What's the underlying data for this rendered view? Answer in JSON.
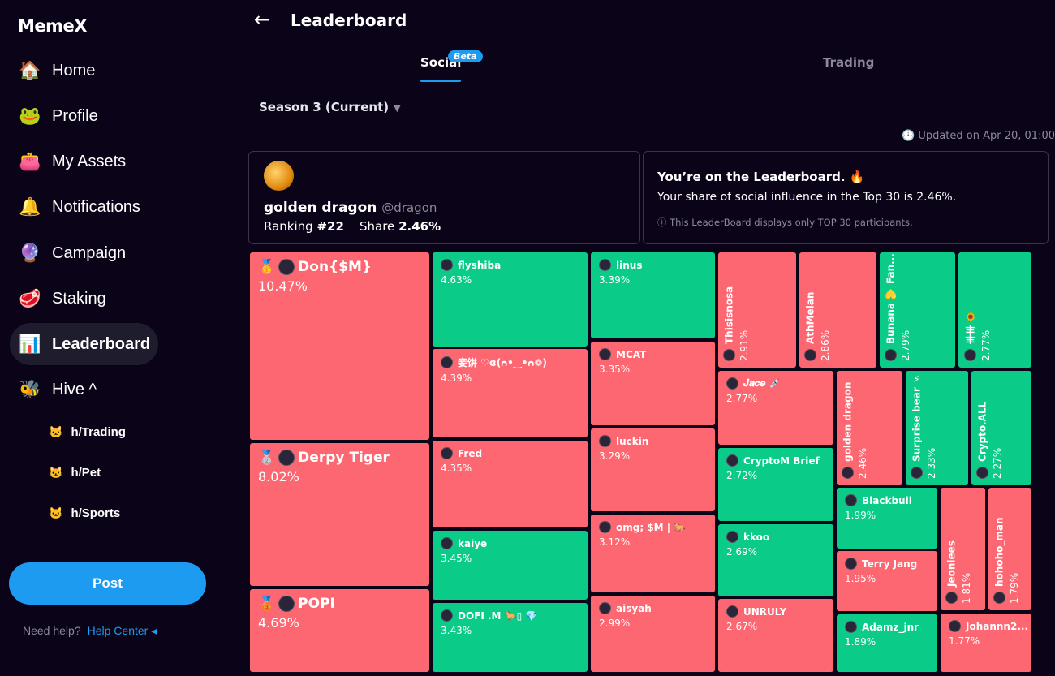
{
  "app": {
    "logo": "MemeX"
  },
  "sidebar": {
    "items": [
      {
        "label": "Home",
        "icon": "🏠"
      },
      {
        "label": "Profile",
        "icon": "🐸"
      },
      {
        "label": "My Assets",
        "icon": "👛"
      },
      {
        "label": "Notifications",
        "icon": "🔔"
      },
      {
        "label": "Campaign",
        "icon": "🔮"
      },
      {
        "label": "Staking",
        "icon": "🥩"
      },
      {
        "label": "Leaderboard",
        "icon": "📊"
      },
      {
        "label": "Hive ^",
        "icon": "🐝"
      }
    ],
    "hive": [
      {
        "label": "h/Trading",
        "icon": "🐱"
      },
      {
        "label": "h/Pet",
        "icon": "🐱"
      },
      {
        "label": "h/Sports",
        "icon": "🐱"
      }
    ],
    "post": "Post",
    "help_text": "Need help?",
    "help_link": "Help Center ◂"
  },
  "header": {
    "back": "←",
    "title": "Leaderboard"
  },
  "tabs": {
    "social": "Social",
    "beta": "Beta",
    "trading": "Trading"
  },
  "season": {
    "label": "Season 3 (Current)",
    "caret": "▼"
  },
  "updated": "🕓 Updated on Apr 20, 01:00",
  "user_card": {
    "name": "golden dragon",
    "handle": "@dragon",
    "ranking_label": "Ranking",
    "ranking": "#22",
    "share_label": "Share",
    "share": "2.46%"
  },
  "info_card": {
    "title": "You’re on the Leaderboard. 🔥",
    "text": "Your share of social influence in the Top 30 is 2.46%.",
    "note": "ⓘ This LeaderBoard displays only TOP 30 participants."
  },
  "colors": {
    "up": "#0acc88",
    "down": "#fd6771",
    "accent": "#1d9bf0"
  },
  "tiles": [
    {
      "name": "Don{$M}",
      "share": "10.47%",
      "trend": "down",
      "badge": "🥇"
    },
    {
      "name": "Derpy Tiger",
      "share": "8.02%",
      "trend": "down",
      "badge": "🥈"
    },
    {
      "name": "POPI",
      "share": "4.69%",
      "trend": "down",
      "badge": "🥉"
    },
    {
      "name": "flyshiba",
      "share": "4.63%",
      "trend": "up"
    },
    {
      "name": "妾饼 ♡ɞ(ᴒ•‿•ᴒ❁)",
      "share": "4.39%",
      "trend": "down"
    },
    {
      "name": "Fred",
      "share": "4.35%",
      "trend": "down"
    },
    {
      "name": "kaiye",
      "share": "3.45%",
      "trend": "up"
    },
    {
      "name": "DOFI .M 🐎▯ 💎",
      "share": "3.43%",
      "trend": "up"
    },
    {
      "name": "linus",
      "share": "3.39%",
      "trend": "up"
    },
    {
      "name": "MCAT",
      "share": "3.35%",
      "trend": "down"
    },
    {
      "name": "luckin",
      "share": "3.29%",
      "trend": "down"
    },
    {
      "name": "omg; $M | 🐎",
      "share": "3.12%",
      "trend": "down"
    },
    {
      "name": "aisyah",
      "share": "2.99%",
      "trend": "down"
    },
    {
      "name": "Thisisnosa",
      "share": "2.91%",
      "trend": "down"
    },
    {
      "name": "AthMelan",
      "share": "2.86%",
      "trend": "down"
    },
    {
      "name": "Bunana 💛 Fan...",
      "share": "2.79%",
      "trend": "up"
    },
    {
      "name": "丰丰 🌻",
      "share": "2.77%",
      "trend": "up"
    },
    {
      "name": "𝑱𝒂𝒄𝒆 💉",
      "share": "2.77%",
      "trend": "down"
    },
    {
      "name": "CryptoM Brief",
      "share": "2.72%",
      "trend": "up"
    },
    {
      "name": "kkoo",
      "share": "2.69%",
      "trend": "up"
    },
    {
      "name": "UNRULY",
      "share": "2.67%",
      "trend": "down"
    },
    {
      "name": "golden dragon",
      "share": "2.46%",
      "trend": "down"
    },
    {
      "name": "Surprise bear ⚡",
      "share": "2.33%",
      "trend": "up"
    },
    {
      "name": "Crypto.ALL",
      "share": "2.27%",
      "trend": "up"
    },
    {
      "name": "Blackbull",
      "share": "1.99%",
      "trend": "up"
    },
    {
      "name": "Terry Jang",
      "share": "1.95%",
      "trend": "down"
    },
    {
      "name": "Adamz_jnr",
      "share": "1.89%",
      "trend": "up"
    },
    {
      "name": "Jeonlees",
      "share": "1.81%",
      "trend": "down"
    },
    {
      "name": "hohoho_man",
      "share": "1.79%",
      "trend": "down"
    },
    {
      "name": "Johannn2...",
      "share": "1.77%",
      "trend": "down"
    }
  ]
}
